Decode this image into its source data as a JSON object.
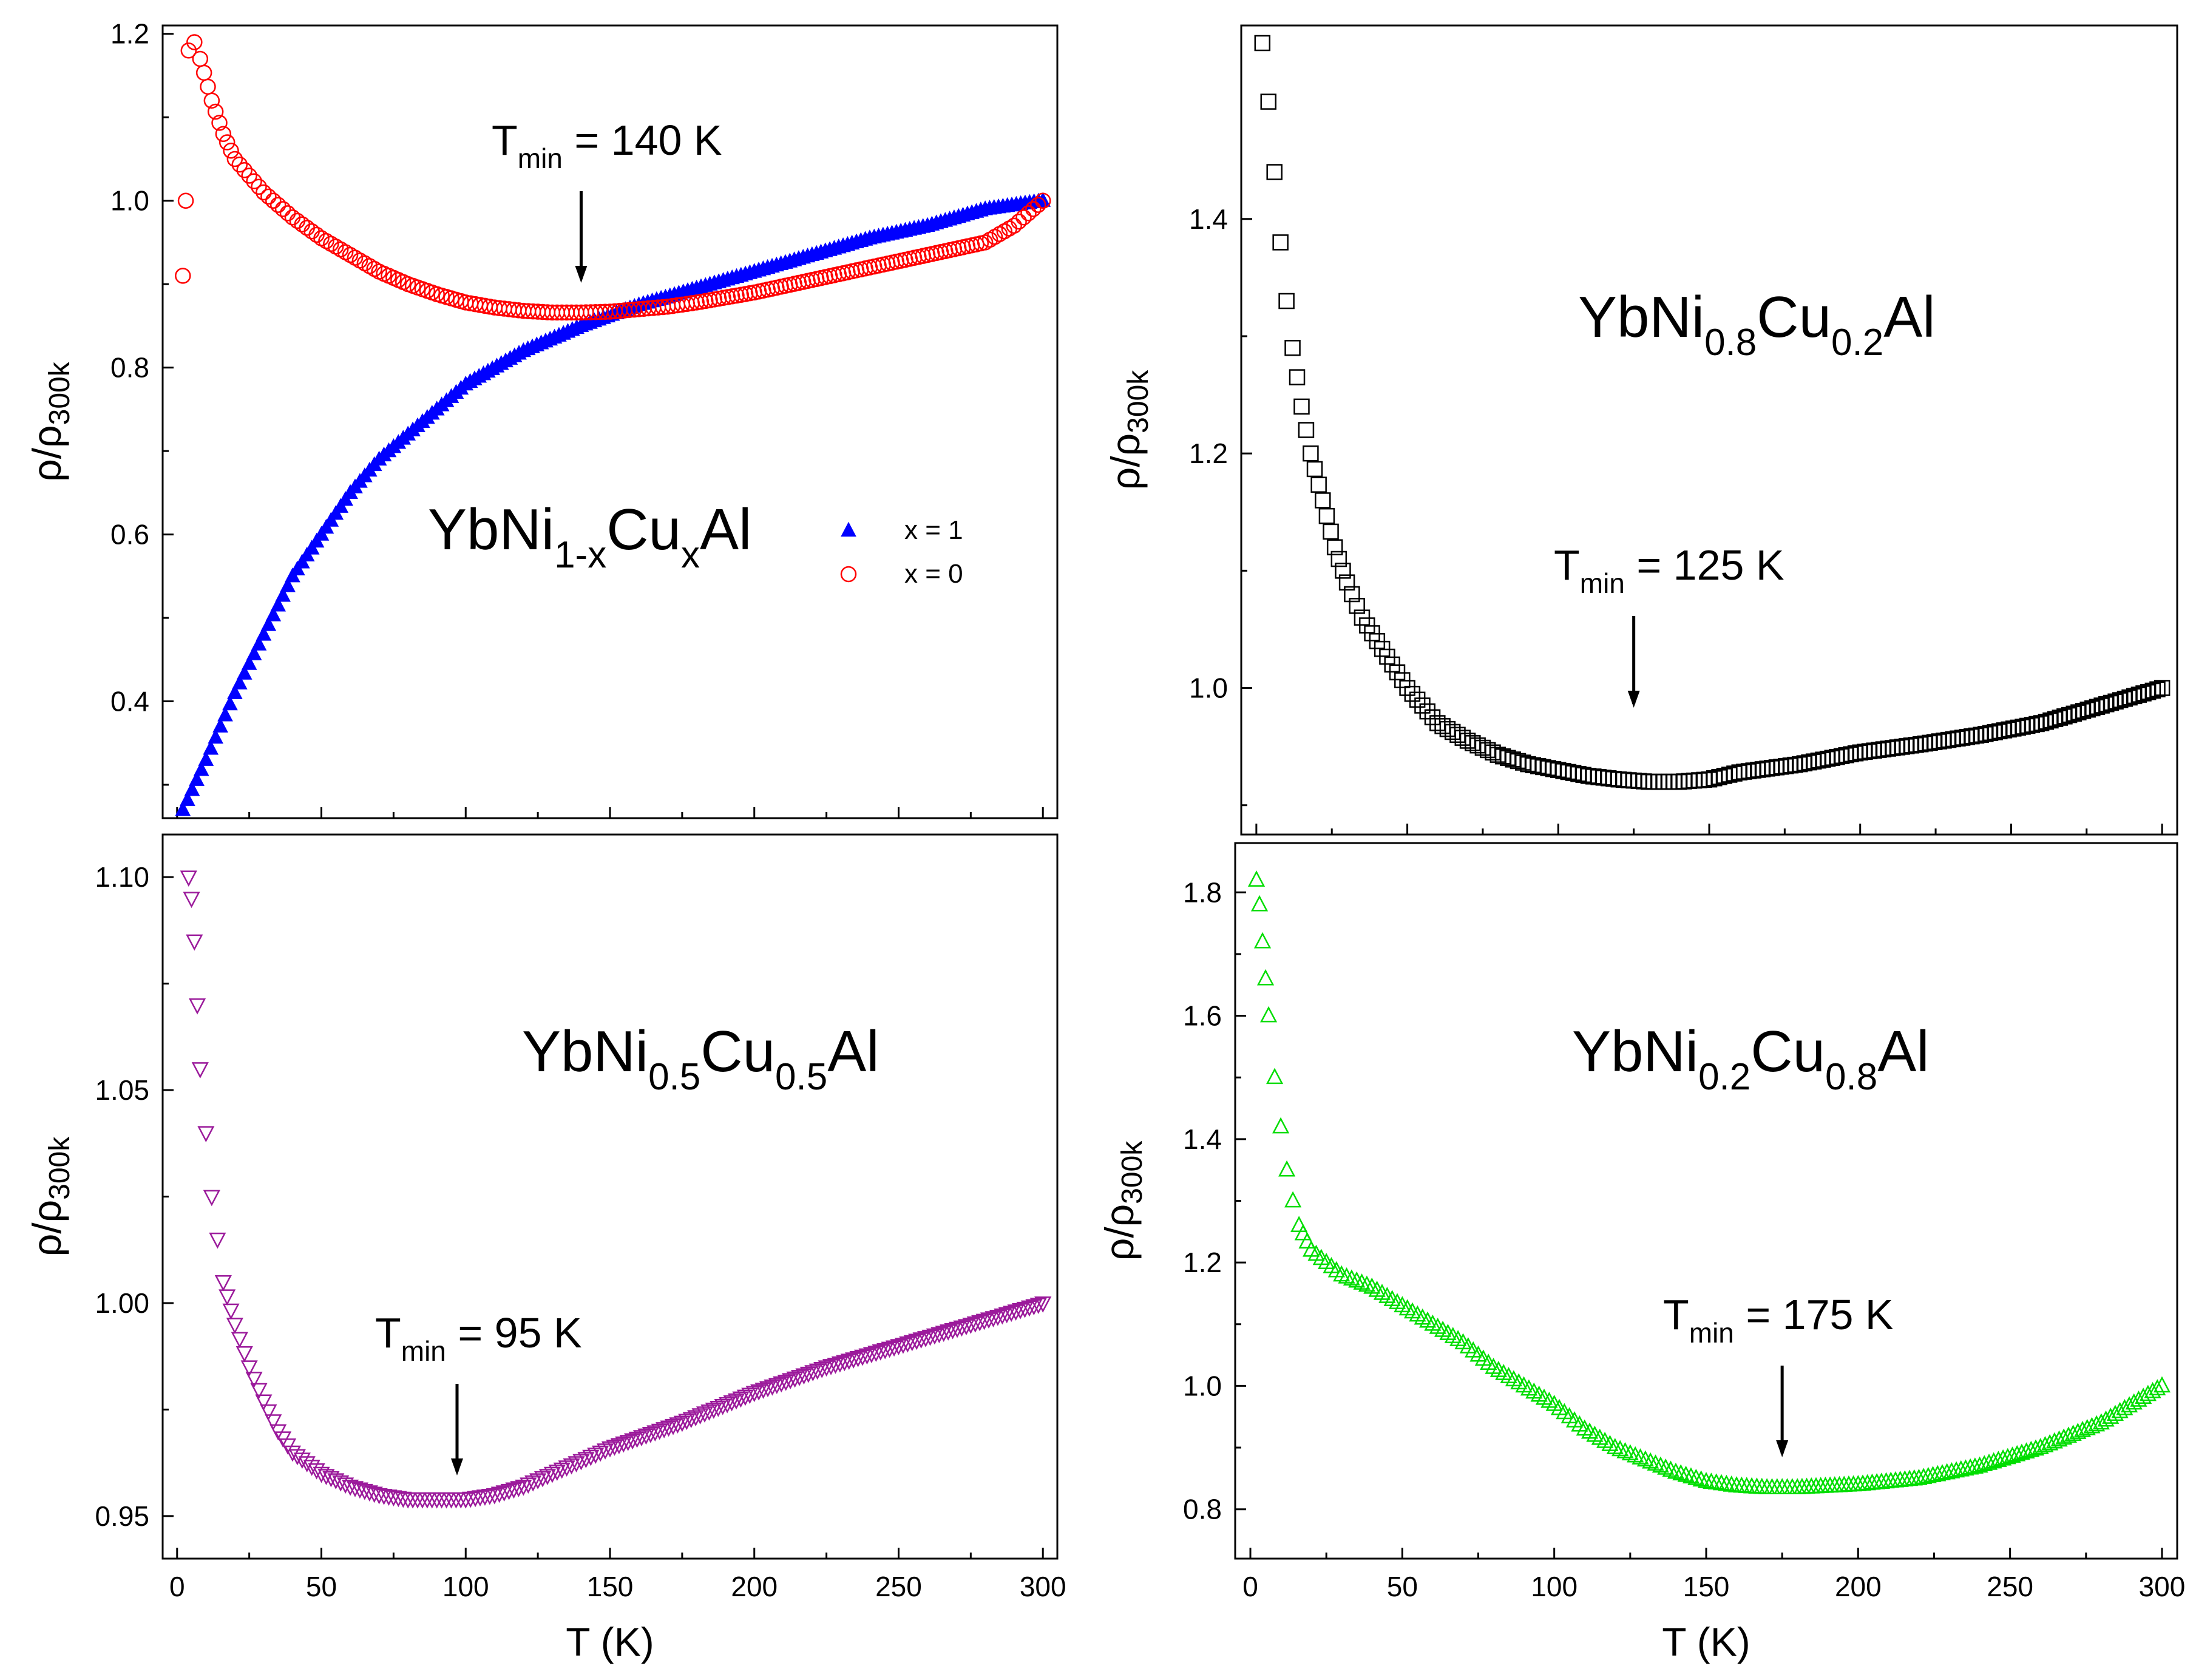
{
  "chart_data": [
    {
      "type": "scatter",
      "panel": "top-left",
      "title": {
        "prefix": "YbNi",
        "sub1": "1-x",
        "mid": "Cu",
        "sub2": "x",
        "suffix": "Al"
      },
      "xlabel": "",
      "ylabel": {
        "base": "ρ/ρ",
        "sub": "300k"
      },
      "xlim": [
        -5,
        305
      ],
      "ylim": [
        0.26,
        1.21
      ],
      "xticks": [
        0,
        50,
        100,
        150,
        200,
        250,
        300
      ],
      "xtick_labels": [],
      "yticks": [
        0.4,
        0.6,
        0.8,
        1.0,
        1.2
      ],
      "ytick_labels": [
        "0.4",
        "0.6",
        "0.8",
        "1.0",
        "1.2"
      ],
      "annotation": {
        "base": "T",
        "sub": "min",
        "rest": " = 140 K",
        "x": 140
      },
      "legend": {
        "position": "center-right",
        "entries": [
          {
            "label": "x = 1",
            "marker": "triangle-up-filled",
            "color": "#0000ff"
          },
          {
            "label": "x = 0",
            "marker": "circle-open",
            "color": "#ff0000"
          }
        ]
      },
      "series": [
        {
          "name": "x = 1",
          "marker": "triangle-up-filled",
          "color": "#0000ff",
          "x": [
            2,
            10,
            20,
            30,
            40,
            50,
            60,
            70,
            80,
            90,
            100,
            120,
            140,
            160,
            180,
            200,
            220,
            240,
            260,
            280,
            300
          ],
          "y": [
            0.27,
            0.33,
            0.41,
            0.48,
            0.55,
            0.6,
            0.65,
            0.69,
            0.72,
            0.75,
            0.78,
            0.82,
            0.85,
            0.875,
            0.895,
            0.915,
            0.935,
            0.955,
            0.97,
            0.99,
            1.0
          ]
        },
        {
          "name": "x = 0",
          "marker": "circle-open",
          "color": "#ff0000",
          "x": [
            2,
            3,
            4,
            6,
            8,
            12,
            16,
            20,
            30,
            40,
            50,
            60,
            70,
            80,
            90,
            100,
            110,
            120,
            130,
            140,
            150,
            160,
            170,
            180,
            200,
            220,
            240,
            260,
            280,
            290,
            300
          ],
          "y": [
            0.91,
            1.0,
            1.18,
            1.19,
            1.17,
            1.12,
            1.08,
            1.05,
            1.01,
            0.98,
            0.955,
            0.935,
            0.915,
            0.9,
            0.888,
            0.878,
            0.872,
            0.868,
            0.866,
            0.866,
            0.867,
            0.87,
            0.873,
            0.878,
            0.89,
            0.905,
            0.92,
            0.935,
            0.95,
            0.97,
            1.0
          ]
        }
      ]
    },
    {
      "type": "scatter",
      "panel": "top-right",
      "title": {
        "prefix": "YbNi",
        "sub1": "0.8",
        "mid": "Cu",
        "sub2": "0.2",
        "suffix": "Al"
      },
      "xlabel": "",
      "ylabel": {
        "base": "ρ/ρ",
        "sub": "300k"
      },
      "xlim": [
        -5,
        305
      ],
      "ylim": [
        0.875,
        1.565
      ],
      "xticks": [
        0,
        50,
        100,
        150,
        200,
        250,
        300
      ],
      "xtick_labels": [],
      "yticks": [
        1.0,
        1.2,
        1.4
      ],
      "ytick_labels": [
        "1.0",
        "1.2",
        "1.4"
      ],
      "annotation": {
        "base": "T",
        "sub": "min",
        "rest": " = 125 K",
        "x": 125
      },
      "series": [
        {
          "name": "YbNi0.8Cu0.2Al",
          "marker": "square-open",
          "color": "#000000",
          "x": [
            2,
            4,
            6,
            8,
            10,
            12,
            15,
            18,
            22,
            26,
            30,
            35,
            40,
            45,
            50,
            55,
            60,
            70,
            80,
            90,
            100,
            110,
            120,
            130,
            140,
            150,
            160,
            180,
            200,
            220,
            240,
            260,
            280,
            300
          ],
          "y": [
            1.55,
            1.5,
            1.44,
            1.38,
            1.33,
            1.29,
            1.24,
            1.2,
            1.16,
            1.12,
            1.09,
            1.06,
            1.04,
            1.02,
            1.0,
            0.985,
            0.97,
            0.955,
            0.943,
            0.935,
            0.93,
            0.925,
            0.922,
            0.92,
            0.92,
            0.922,
            0.928,
            0.935,
            0.945,
            0.952,
            0.96,
            0.97,
            0.985,
            1.0
          ]
        }
      ]
    },
    {
      "type": "scatter",
      "panel": "bottom-left",
      "title": {
        "prefix": "YbNi",
        "sub1": "0.5",
        "mid": "Cu",
        "sub2": "0.5",
        "suffix": "Al"
      },
      "xlabel": "T (K)",
      "ylabel": {
        "base": "ρ/ρ",
        "sub": "300k"
      },
      "xlim": [
        -5,
        305
      ],
      "ylim": [
        0.94,
        1.11
      ],
      "xticks": [
        0,
        50,
        100,
        150,
        200,
        250,
        300
      ],
      "xtick_labels": [
        "0",
        "50",
        "100",
        "150",
        "200",
        "250",
        "300"
      ],
      "yticks": [
        0.95,
        1.0,
        1.05,
        1.1
      ],
      "ytick_labels": [
        "0.95",
        "1.00",
        "1.05",
        "1.10"
      ],
      "annotation": {
        "base": "T",
        "sub": "min",
        "rest": " = 95 K",
        "x": 97
      },
      "series": [
        {
          "name": "YbNi0.5Cu0.5Al",
          "marker": "triangle-down-open",
          "color": "#9b1a9b",
          "x": [
            4,
            5,
            6,
            7,
            8,
            10,
            12,
            14,
            16,
            20,
            25,
            30,
            35,
            40,
            50,
            60,
            70,
            80,
            90,
            100,
            110,
            120,
            130,
            140,
            150,
            175,
            200,
            225,
            250,
            275,
            300
          ],
          "y": [
            1.1,
            1.095,
            1.085,
            1.07,
            1.055,
            1.04,
            1.025,
            1.015,
            1.005,
            0.995,
            0.985,
            0.977,
            0.97,
            0.965,
            0.96,
            0.957,
            0.955,
            0.954,
            0.954,
            0.954,
            0.955,
            0.957,
            0.96,
            0.963,
            0.966,
            0.972,
            0.979,
            0.985,
            0.99,
            0.995,
            1.0
          ]
        }
      ]
    },
    {
      "type": "scatter",
      "panel": "bottom-right",
      "title": {
        "prefix": "YbNi",
        "sub1": "0.2",
        "mid": "Cu",
        "sub2": "0.8",
        "suffix": "Al"
      },
      "xlabel": "T (K)",
      "ylabel": {
        "base": "ρ/ρ",
        "sub": "300k"
      },
      "xlim": [
        -5,
        305
      ],
      "ylim": [
        0.72,
        1.88
      ],
      "xticks": [
        0,
        50,
        100,
        150,
        200,
        250,
        300
      ],
      "xtick_labels": [
        "0",
        "50",
        "100",
        "150",
        "200",
        "250",
        "300"
      ],
      "yticks": [
        0.8,
        1.0,
        1.2,
        1.4,
        1.6,
        1.8
      ],
      "ytick_labels": [
        "0.8",
        "1.0",
        "1.2",
        "1.4",
        "1.6",
        "1.8"
      ],
      "annotation": {
        "base": "T",
        "sub": "min",
        "rest": " = 175 K",
        "x": 175
      },
      "series": [
        {
          "name": "YbNi0.2Cu0.8Al",
          "marker": "triangle-up-open",
          "color": "#00dd00",
          "x": [
            2,
            3,
            4,
            5,
            6,
            8,
            10,
            12,
            14,
            16,
            20,
            25,
            30,
            40,
            50,
            60,
            70,
            80,
            90,
            100,
            110,
            120,
            130,
            140,
            150,
            160,
            170,
            180,
            200,
            220,
            240,
            260,
            280,
            300
          ],
          "y": [
            1.82,
            1.78,
            1.72,
            1.66,
            1.6,
            1.5,
            1.42,
            1.35,
            1.3,
            1.26,
            1.22,
            1.2,
            1.18,
            1.16,
            1.13,
            1.1,
            1.07,
            1.03,
            1.0,
            0.97,
            0.93,
            0.9,
            0.88,
            0.86,
            0.845,
            0.838,
            0.835,
            0.835,
            0.84,
            0.85,
            0.87,
            0.9,
            0.94,
            1.0
          ]
        }
      ]
    }
  ]
}
